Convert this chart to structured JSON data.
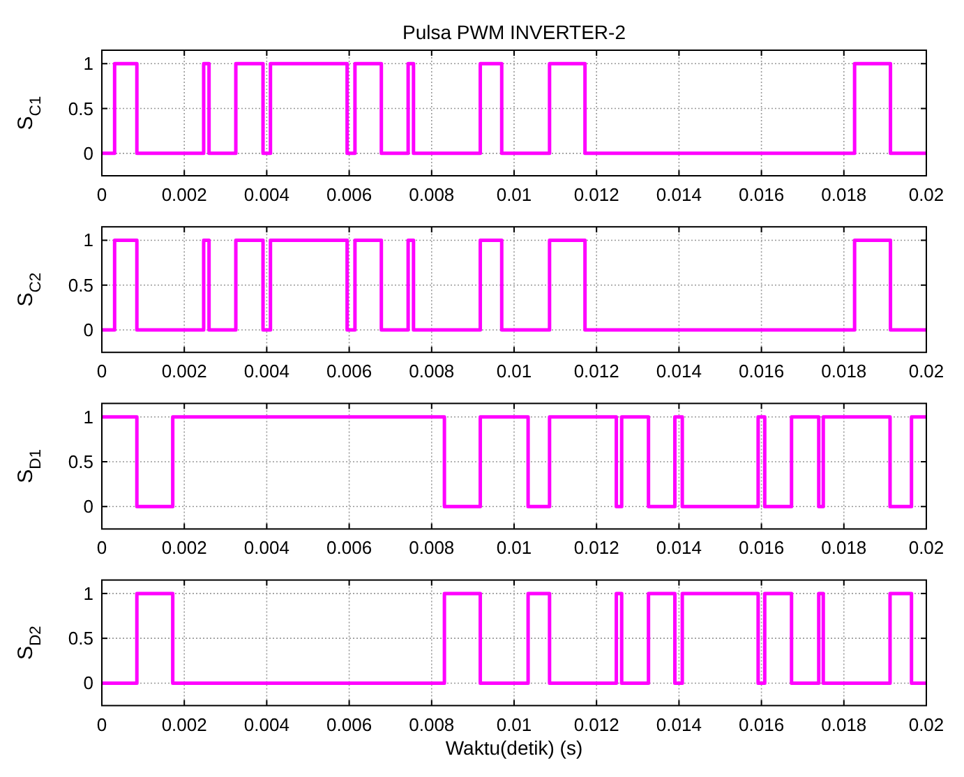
{
  "chart_data": [
    {
      "type": "step",
      "title": "Pulsa PWM INVERTER-2",
      "ylabel": "S$_{C1}$",
      "xlim": [
        0,
        0.02
      ],
      "xticks": [
        0,
        0.002,
        0.004,
        0.006,
        0.008,
        0.01,
        0.012,
        0.014,
        0.016,
        0.018,
        0.02
      ],
      "ylim": [
        -0.25,
        1.15
      ],
      "yticks": [
        0,
        0.5,
        1
      ],
      "grid": true,
      "series": [
        {
          "color": "#ff00ff",
          "x": [
            0,
            0.00031,
            0.00085,
            0.00247,
            0.0026,
            0.00325,
            0.00391,
            0.00409,
            0.00595,
            0.00614,
            0.00678,
            0.00743,
            0.00756,
            0.00918,
            0.0097,
            0.01086,
            0.01172,
            0.01826,
            0.01913,
            0.02
          ],
          "values": [
            0,
            1,
            0,
            1,
            0,
            1,
            0,
            1,
            0,
            1,
            0,
            1,
            0,
            1,
            0,
            1,
            0,
            1,
            0,
            0
          ]
        }
      ]
    },
    {
      "type": "step",
      "ylabel": "S$_{C2}$",
      "xlim": [
        0,
        0.02
      ],
      "xticks": [
        0,
        0.002,
        0.004,
        0.006,
        0.008,
        0.01,
        0.012,
        0.014,
        0.016,
        0.018,
        0.02
      ],
      "ylim": [
        -0.25,
        1.15
      ],
      "yticks": [
        0,
        0.5,
        1
      ],
      "grid": true,
      "series": [
        {
          "color": "#ff00ff",
          "x": [
            0,
            0.00031,
            0.00085,
            0.00247,
            0.0026,
            0.00325,
            0.00391,
            0.00409,
            0.00595,
            0.00614,
            0.00678,
            0.00743,
            0.00756,
            0.00918,
            0.0097,
            0.01086,
            0.01172,
            0.01826,
            0.01913,
            0.02
          ],
          "values": [
            0,
            1,
            0,
            1,
            0,
            1,
            0,
            1,
            0,
            1,
            0,
            1,
            0,
            1,
            0,
            1,
            0,
            1,
            0,
            0
          ]
        }
      ]
    },
    {
      "type": "step",
      "ylabel": "S$_{D1}$",
      "xlim": [
        0,
        0.02
      ],
      "xticks": [
        0,
        0.002,
        0.004,
        0.006,
        0.008,
        0.01,
        0.012,
        0.014,
        0.016,
        0.018,
        0.02
      ],
      "ylim": [
        -0.25,
        1.15
      ],
      "yticks": [
        0,
        0.5,
        1
      ],
      "grid": true,
      "series": [
        {
          "color": "#ff00ff",
          "x": [
            0,
            0.00085,
            0.00172,
            0.00831,
            0.00918,
            0.01034,
            0.01086,
            0.01248,
            0.01261,
            0.01326,
            0.0139,
            0.01408,
            0.01592,
            0.01608,
            0.01673,
            0.01739,
            0.0175,
            0.01912,
            0.01964,
            0.02
          ],
          "values": [
            1,
            0,
            1,
            0,
            1,
            0,
            1,
            0,
            1,
            0,
            1,
            0,
            1,
            0,
            1,
            0,
            1,
            0,
            1,
            1
          ]
        }
      ]
    },
    {
      "type": "step",
      "ylabel": "S$_{D2}$",
      "xlabel": "Waktu(detik) (s)",
      "xlim": [
        0,
        0.02
      ],
      "xticks": [
        0,
        0.002,
        0.004,
        0.006,
        0.008,
        0.01,
        0.012,
        0.014,
        0.016,
        0.018,
        0.02
      ],
      "ylim": [
        -0.25,
        1.15
      ],
      "yticks": [
        0,
        0.5,
        1
      ],
      "grid": true,
      "series": [
        {
          "color": "#ff00ff",
          "x": [
            0,
            0.00085,
            0.00172,
            0.00831,
            0.00918,
            0.01034,
            0.01086,
            0.01248,
            0.01261,
            0.01326,
            0.0139,
            0.01408,
            0.01592,
            0.01608,
            0.01673,
            0.01739,
            0.0175,
            0.01912,
            0.01964,
            0.02
          ],
          "values": [
            0,
            1,
            0,
            1,
            0,
            1,
            0,
            1,
            0,
            1,
            0,
            1,
            0,
            1,
            0,
            1,
            0,
            1,
            0,
            0
          ]
        }
      ]
    }
  ]
}
